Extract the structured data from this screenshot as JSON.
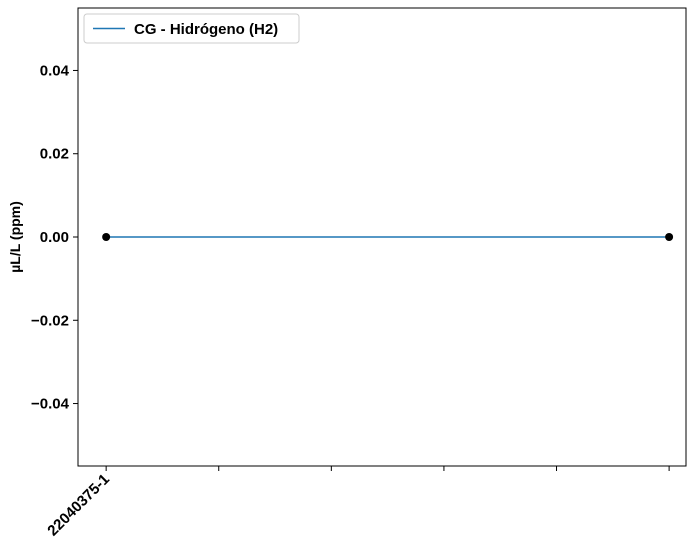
{
  "chart_data": {
    "type": "line",
    "title": "",
    "xlabel": "",
    "ylabel": "µL/L (ppm)",
    "categories": [
      "22040375-1",
      "",
      "",
      "",
      "",
      ""
    ],
    "x_tick_count": 6,
    "series": [
      {
        "name": "CG - Hidrógeno (H2)",
        "color": "#1f77b4",
        "points": [
          {
            "x": 0,
            "y": 0.0
          },
          {
            "x": 5,
            "y": 0.0
          }
        ]
      }
    ],
    "marker_color": "#000000",
    "ylim": [
      -0.055,
      0.055
    ],
    "yticks": [
      {
        "value": 0.04,
        "label": "0.04"
      },
      {
        "value": 0.02,
        "label": "0.02"
      },
      {
        "value": 0.0,
        "label": "0.00"
      },
      {
        "value": -0.02,
        "label": "−0.02"
      },
      {
        "value": -0.04,
        "label": "−0.04"
      }
    ],
    "xlim": [
      -0.25,
      5.15
    ],
    "grid": false,
    "legend_position": "upper-left"
  }
}
